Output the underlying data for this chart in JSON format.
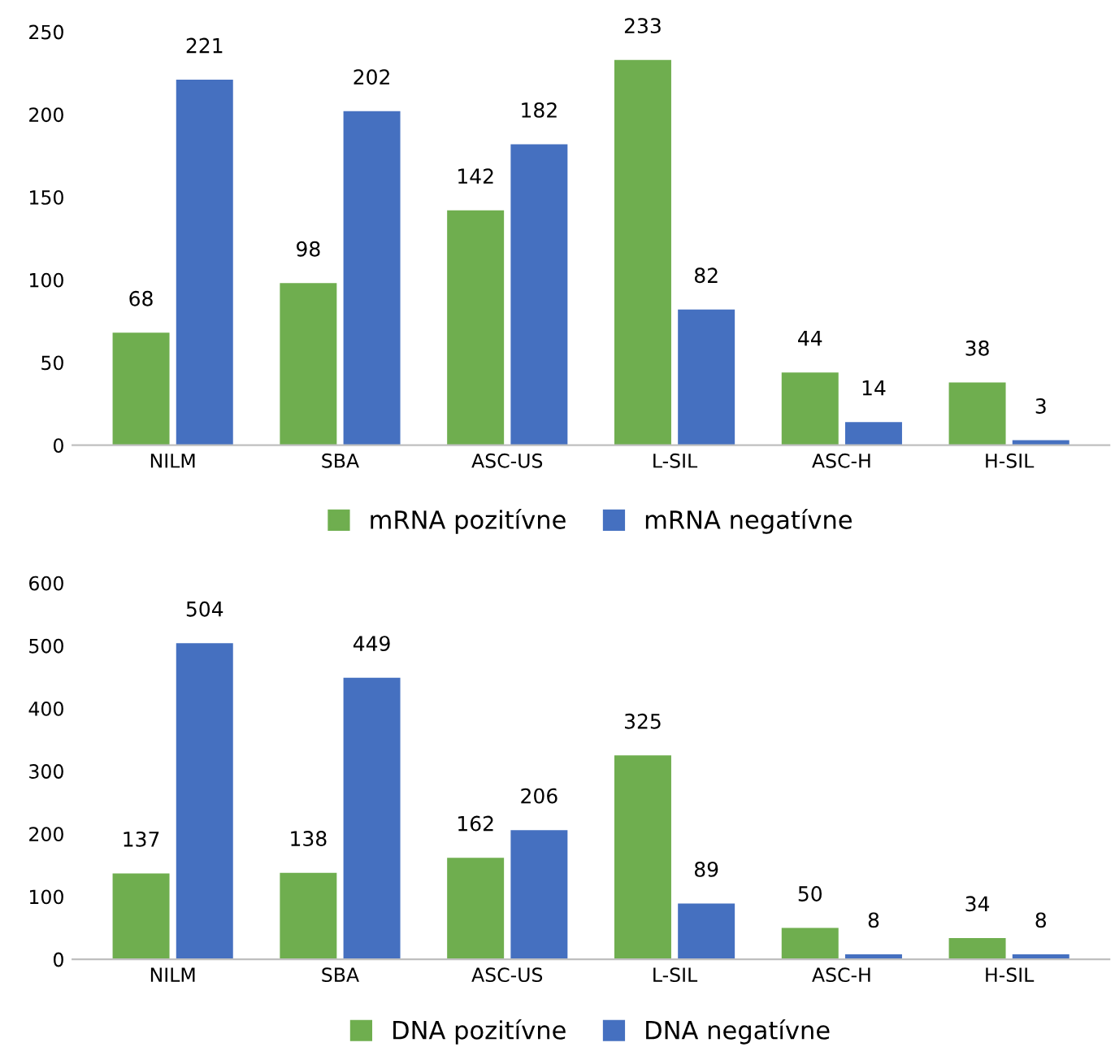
{
  "chart_data": [
    {
      "type": "bar",
      "categories": [
        "NILM",
        "SBA",
        "ASC-US",
        "L-SIL",
        "ASC-H",
        "H-SIL"
      ],
      "series": [
        {
          "name": "mRNA pozitívne",
          "color": "#6fae4f",
          "values": [
            68,
            98,
            142,
            233,
            44,
            38
          ]
        },
        {
          "name": "mRNA negatívne",
          "color": "#4570c0",
          "values": [
            221,
            202,
            182,
            82,
            14,
            3
          ]
        }
      ],
      "ylim": [
        0,
        250
      ],
      "yticks": [
        0,
        50,
        100,
        150,
        200,
        250
      ],
      "grid": false,
      "legend": "bottom",
      "data_labels": true
    },
    {
      "type": "bar",
      "categories": [
        "NILM",
        "SBA",
        "ASC-US",
        "L-SIL",
        "ASC-H",
        "H-SIL"
      ],
      "series": [
        {
          "name": "DNA pozitívne",
          "color": "#6fae4f",
          "values": [
            137,
            138,
            162,
            325,
            50,
            34
          ]
        },
        {
          "name": "DNA negatívne",
          "color": "#4570c0",
          "values": [
            504,
            449,
            206,
            89,
            8,
            8
          ]
        }
      ],
      "ylim": [
        0,
        600
      ],
      "yticks": [
        0,
        100,
        200,
        300,
        400,
        500,
        600
      ],
      "grid": false,
      "legend": "bottom",
      "data_labels": true
    }
  ]
}
